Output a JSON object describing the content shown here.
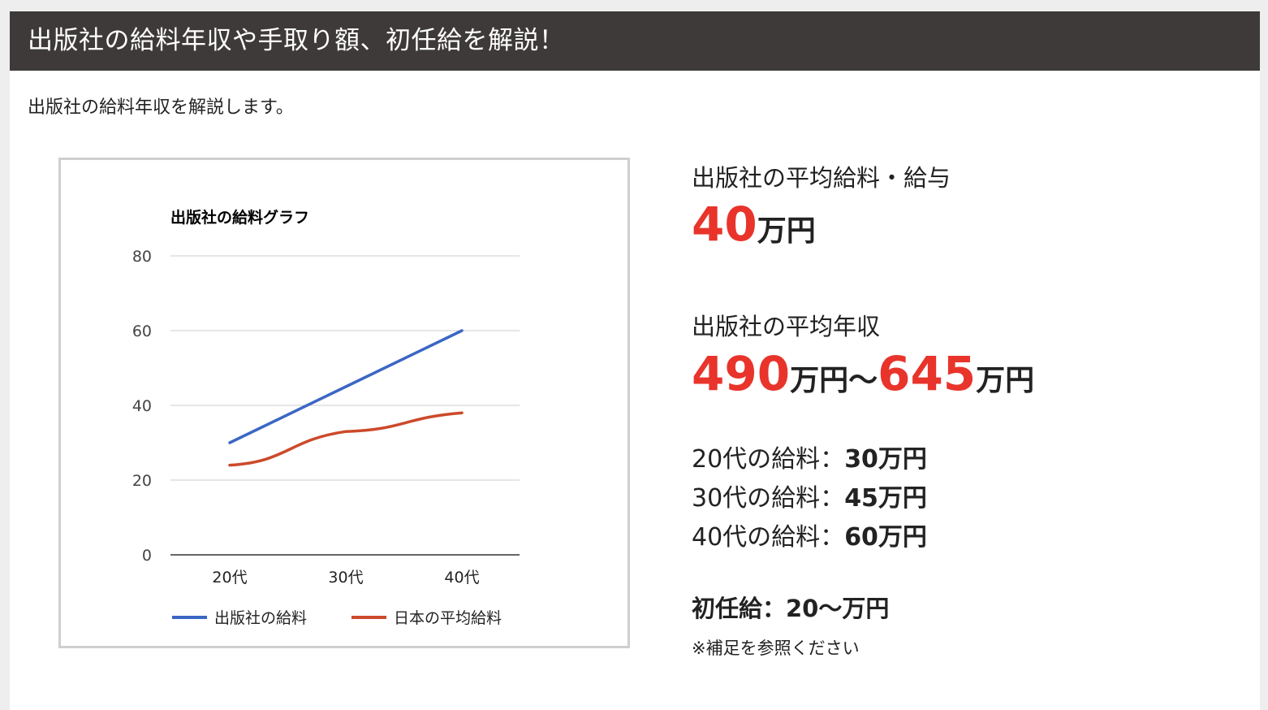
{
  "header": {
    "title": "出版社の給料年収や手取り額、初任給を解説！"
  },
  "intro": "出版社の給料年収を解説します。",
  "colors": {
    "title_bar": "#3e3a39",
    "accent_red": "#e8342b",
    "series_blue": "#3b66c4",
    "series_red": "#cc4a2b"
  },
  "chart_data": {
    "type": "line",
    "title": "出版社の給料グラフ",
    "categories": [
      "20代",
      "30代",
      "40代"
    ],
    "series": [
      {
        "name": "出版社の給料",
        "values": [
          30,
          45,
          60
        ],
        "color": "#3b66c4"
      },
      {
        "name": "日本の平均給料",
        "values": [
          24,
          33,
          38
        ],
        "color": "#cc4a2b"
      }
    ],
    "yticks": [
      "0",
      "20",
      "40",
      "60",
      "80"
    ],
    "ylim": [
      0,
      80
    ],
    "grid": true,
    "legend": "bottom"
  },
  "info": {
    "avg_salary_heading": "出版社の平均給料・給与",
    "avg_salary_value": "40",
    "avg_salary_unit": "万円",
    "avg_income_heading": "出版社の平均年収",
    "income_low": "490",
    "income_low_unit": "万円〜",
    "income_high": "645",
    "income_high_unit": "万円",
    "ages": [
      {
        "label": "20代の給料：",
        "value": "30万円"
      },
      {
        "label": "30代の給料：",
        "value": "45万円"
      },
      {
        "label": "40代の給料：",
        "value": "60万円"
      }
    ],
    "starting_salary": "初任給：20〜万円",
    "note": "※補足を参照ください"
  }
}
